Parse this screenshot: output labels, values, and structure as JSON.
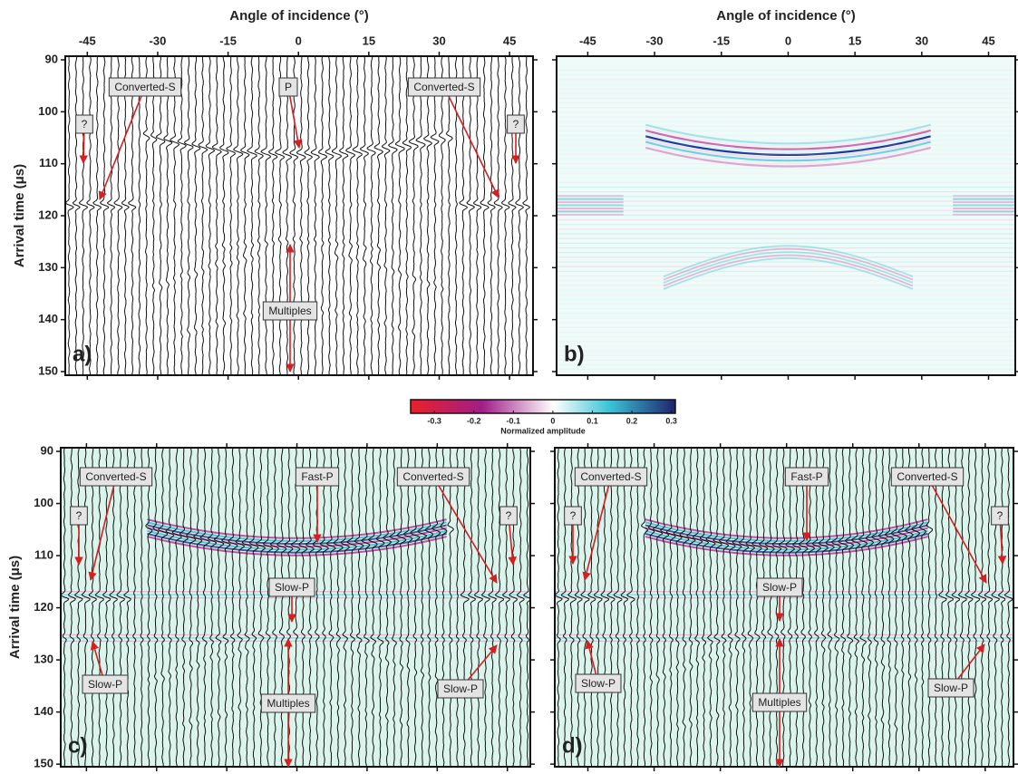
{
  "chart_data": [
    {
      "type": "seismogram",
      "panel_label": "a)",
      "xlabel": "Angle of incidence (°)",
      "ylabel": "Arrival time (μs)",
      "xlim": [
        -49.7,
        50
      ],
      "xticks": [
        -45,
        -30,
        -15,
        0,
        15,
        30,
        45
      ],
      "ylim": [
        89.3,
        150.7
      ],
      "yticks": [
        90,
        100,
        110,
        120,
        130,
        140,
        150
      ],
      "annotations": [
        "Converted-S",
        "P",
        "Converted-S",
        "?",
        "?",
        "Multiples"
      ]
    },
    {
      "type": "image",
      "panel_label": "b)",
      "xlabel": "Angle of incidence (°)",
      "xlim": [
        -52,
        51
      ],
      "xticks": [
        -45,
        -30,
        -15,
        0,
        15,
        30,
        45
      ],
      "ylim": [
        89.3,
        150.7
      ],
      "yticks": [
        90,
        100,
        110,
        120,
        130,
        140,
        150
      ],
      "annotations": []
    },
    {
      "type": "seismogram-color",
      "panel_label": "c)",
      "ylabel": "Arrival time (μs)",
      "xlim": [
        -50.5,
        49.9
      ],
      "xticks": [
        -45,
        -30,
        -15,
        0,
        15,
        30,
        45
      ],
      "ylim": [
        89.3,
        150.5
      ],
      "yticks": [
        90,
        100,
        110,
        120,
        130,
        140,
        150
      ],
      "annotations": [
        "Converted-S",
        "Fast-P",
        "Converted-S",
        "?",
        "?",
        "Slow-P",
        "Slow-P",
        "Slow-P",
        "Multiples"
      ]
    },
    {
      "type": "seismogram-color",
      "panel_label": "d)",
      "xlim": [
        -52.5,
        51.4
      ],
      "xticks": [
        -45,
        -30,
        -15,
        0,
        15,
        30,
        45
      ],
      "ylim": [
        89.3,
        150.5
      ],
      "yticks": [
        90,
        100,
        110,
        120,
        130,
        140,
        150
      ],
      "annotations": [
        "Converted-S",
        "Fast-P",
        "Converted-S",
        "?",
        "?",
        "Slow-P",
        "Slow-P",
        "Slow-P",
        "Multiples"
      ]
    }
  ],
  "colorbar": {
    "label": "Normalized amplitude",
    "lim": [
      -0.36,
      0.31
    ],
    "ticks": [
      -0.3,
      -0.2,
      -0.1,
      0,
      0.1,
      0.2,
      0.3
    ]
  }
}
